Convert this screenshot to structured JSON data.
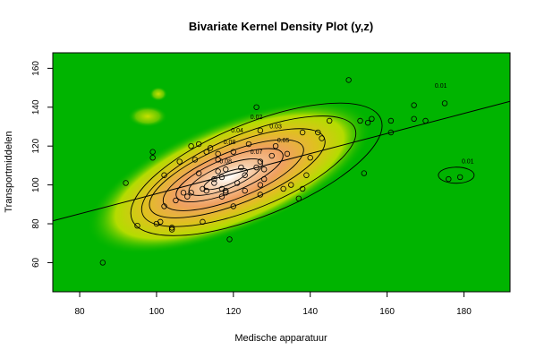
{
  "chart_data": {
    "type": "scatter",
    "title": "Bivariate Kernel Density Plot (y,z)",
    "xlabel": "Medische apparatuur",
    "ylabel": "Transportmiddelen",
    "xlim": [
      73,
      192
    ],
    "ylim": [
      45,
      168
    ],
    "x_ticks": [
      80,
      100,
      120,
      140,
      160,
      180
    ],
    "y_ticks": [
      60,
      80,
      100,
      120,
      140,
      160
    ],
    "background": "density heatmap: green (low) to yellow, orange, white (high)",
    "colors": {
      "low": "#00b400",
      "mid": "#e6e600",
      "high": "#f0a060",
      "peak": "#ffffff",
      "lines": "#000000"
    },
    "regression_line": {
      "x": [
        73,
        192
      ],
      "y": [
        81.5,
        143
      ]
    },
    "contour_labels": [
      "0.01",
      "0.01",
      "0.02",
      "0.03",
      "0.04",
      "0.05",
      "0.07",
      "0.08",
      "0.08"
    ],
    "points": [
      [
        86,
        60
      ],
      [
        92,
        101
      ],
      [
        95,
        79
      ],
      [
        99,
        117
      ],
      [
        99,
        114
      ],
      [
        100,
        80
      ],
      [
        101,
        81
      ],
      [
        102,
        105
      ],
      [
        102,
        89
      ],
      [
        104,
        77
      ],
      [
        104,
        78
      ],
      [
        105,
        92
      ],
      [
        106,
        112
      ],
      [
        107,
        96
      ],
      [
        108,
        94
      ],
      [
        109,
        96
      ],
      [
        109,
        120
      ],
      [
        110,
        113
      ],
      [
        111,
        106
      ],
      [
        111,
        121
      ],
      [
        112,
        98
      ],
      [
        112,
        81
      ],
      [
        113,
        97
      ],
      [
        113,
        117
      ],
      [
        114,
        119
      ],
      [
        115,
        103
      ],
      [
        115,
        101
      ],
      [
        116,
        107
      ],
      [
        116,
        113
      ],
      [
        116,
        116
      ],
      [
        117,
        98
      ],
      [
        117,
        104
      ],
      [
        117,
        94
      ],
      [
        118,
        97
      ],
      [
        118,
        96
      ],
      [
        118,
        108
      ],
      [
        119,
        72
      ],
      [
        120,
        89
      ],
      [
        120,
        117
      ],
      [
        121,
        101
      ],
      [
        122,
        109
      ],
      [
        123,
        105
      ],
      [
        123,
        97
      ],
      [
        124,
        121
      ],
      [
        126,
        140
      ],
      [
        126,
        109
      ],
      [
        127,
        112
      ],
      [
        127,
        100
      ],
      [
        127,
        95
      ],
      [
        127,
        128
      ],
      [
        128,
        103
      ],
      [
        128,
        108
      ],
      [
        130,
        115
      ],
      [
        131,
        120
      ],
      [
        133,
        98
      ],
      [
        134,
        116
      ],
      [
        135,
        100
      ],
      [
        137,
        93
      ],
      [
        138,
        98
      ],
      [
        138,
        127
      ],
      [
        139,
        105
      ],
      [
        140,
        114
      ],
      [
        142,
        127
      ],
      [
        143,
        124
      ],
      [
        145,
        133
      ],
      [
        150,
        154
      ],
      [
        153,
        133
      ],
      [
        154,
        106
      ],
      [
        155,
        132
      ],
      [
        156,
        134
      ],
      [
        161,
        127
      ],
      [
        161,
        133
      ],
      [
        167,
        141
      ],
      [
        167,
        134
      ],
      [
        170,
        133
      ],
      [
        175,
        142
      ],
      [
        176,
        103
      ],
      [
        179,
        104
      ]
    ]
  }
}
